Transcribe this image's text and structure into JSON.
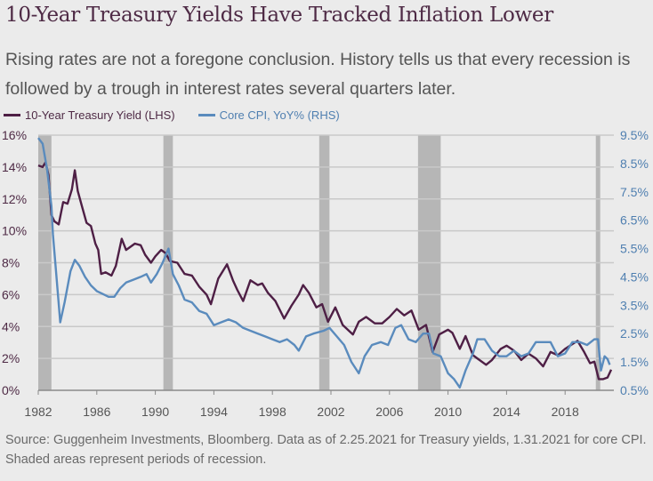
{
  "header": {
    "title": "10-Year Treasury Yields Have Tracked Inflation Lower",
    "subtitle": "Rising rates are not a foregone conclusion. History tells us that every recession is followed by a trough in interest rates several quarters later."
  },
  "footer": {
    "source": "Source: Guggenheim Investments, Bloomberg. Data as of 2.25.2021 for Treasury yields, 1.31.2021 for core CPI. Shaded areas represent periods of recession."
  },
  "colors": {
    "treasury": "#4e1f45",
    "cpi": "#5a8bbd",
    "recession": "#b6b6b6",
    "grid": "#c9c9c9",
    "background": "#ebebeb"
  },
  "chart_data": {
    "type": "line",
    "title": "10-Year Treasury Yields Have Tracked Inflation Lower",
    "xlabel": "",
    "ylabel_left": "10-Year Treasury Yield (%)",
    "ylabel_right": "Core CPI, YoY%",
    "xlim": [
      1982,
      2021.2
    ],
    "ylim_left": [
      0,
      16
    ],
    "ylim_right": [
      0.5,
      9.5
    ],
    "grid": true,
    "legend_position": "top-left",
    "x_ticks": [
      "1982",
      "1986",
      "1990",
      "1994",
      "1998",
      "2002",
      "2006",
      "2010",
      "2014",
      "2018"
    ],
    "x_tick_values": [
      1982,
      1986,
      1990,
      1994,
      1998,
      2002,
      2006,
      2010,
      2014,
      2018
    ],
    "y_ticks_left": [
      "16%",
      "14%",
      "12%",
      "10%",
      "8%",
      "6%",
      "4%",
      "2%",
      "0%"
    ],
    "y_tick_values_left": [
      16,
      14,
      12,
      10,
      8,
      6,
      4,
      2,
      0
    ],
    "y_ticks_right": [
      "9.5%",
      "8.5%",
      "7.5%",
      "6.5%",
      "5.5%",
      "4.5%",
      "3.5%",
      "2.5%",
      "1.5%",
      "0.5%"
    ],
    "y_tick_values_right": [
      9.5,
      8.5,
      7.5,
      6.5,
      5.5,
      4.5,
      3.5,
      2.5,
      1.5,
      0.5
    ],
    "recessions": [
      {
        "start": 1982.0,
        "end": 1982.9
      },
      {
        "start": 1990.55,
        "end": 1991.2
      },
      {
        "start": 2001.2,
        "end": 2001.9
      },
      {
        "start": 2007.95,
        "end": 2009.5
      },
      {
        "start": 2020.1,
        "end": 2020.4
      }
    ],
    "series": [
      {
        "name": "10-Year Treasury Yield (LHS)",
        "axis": "left",
        "x": [
          1982.0,
          1982.3,
          1982.5,
          1982.7,
          1982.9,
          1983.1,
          1983.4,
          1983.7,
          1984.0,
          1984.3,
          1984.5,
          1984.7,
          1985.0,
          1985.3,
          1985.6,
          1985.9,
          1986.1,
          1986.3,
          1986.6,
          1987.0,
          1987.3,
          1987.7,
          1988.0,
          1988.3,
          1988.6,
          1989.0,
          1989.3,
          1989.7,
          1990.0,
          1990.4,
          1990.7,
          1991.0,
          1991.5,
          1992.0,
          1992.5,
          1993.0,
          1993.5,
          1993.8,
          1994.3,
          1994.9,
          1995.3,
          1995.6,
          1996.0,
          1996.5,
          1997.0,
          1997.3,
          1997.7,
          1998.2,
          1998.8,
          1999.3,
          1999.8,
          2000.1,
          2000.5,
          2001.0,
          2001.4,
          2001.8,
          2002.3,
          2002.8,
          2003.5,
          2003.9,
          2004.4,
          2005.0,
          2005.5,
          2006.0,
          2006.5,
          2007.0,
          2007.5,
          2008.0,
          2008.5,
          2008.95,
          2009.4,
          2010.0,
          2010.3,
          2010.8,
          2011.2,
          2011.7,
          2012.0,
          2012.6,
          2013.0,
          2013.6,
          2014.0,
          2014.5,
          2015.0,
          2015.5,
          2016.0,
          2016.5,
          2017.0,
          2017.5,
          2018.0,
          2018.5,
          2018.85,
          2019.3,
          2019.7,
          2020.0,
          2020.3,
          2020.6,
          2020.9,
          2021.15
        ],
        "values": [
          14.1,
          14.0,
          14.3,
          13.5,
          11.0,
          10.6,
          10.4,
          11.8,
          11.7,
          12.6,
          13.8,
          12.5,
          11.5,
          10.5,
          10.3,
          9.2,
          8.8,
          7.3,
          7.4,
          7.2,
          7.8,
          9.5,
          8.8,
          9.0,
          9.2,
          9.1,
          8.5,
          8.0,
          8.4,
          8.8,
          8.6,
          8.1,
          8.0,
          7.3,
          7.2,
          6.5,
          6.0,
          5.4,
          7.0,
          7.9,
          6.9,
          6.3,
          5.6,
          6.9,
          6.6,
          6.7,
          6.1,
          5.6,
          4.5,
          5.3,
          6.0,
          6.6,
          6.1,
          5.2,
          5.4,
          4.3,
          5.2,
          4.1,
          3.5,
          4.3,
          4.6,
          4.2,
          4.2,
          4.6,
          5.1,
          4.7,
          5.0,
          3.8,
          4.1,
          2.4,
          3.5,
          3.8,
          3.6,
          2.6,
          3.4,
          2.2,
          2.0,
          1.6,
          1.9,
          2.6,
          2.8,
          2.5,
          1.9,
          2.3,
          2.0,
          1.5,
          2.4,
          2.2,
          2.6,
          2.9,
          3.1,
          2.4,
          1.7,
          1.8,
          0.7,
          0.7,
          0.8,
          1.3
        ]
      },
      {
        "name": "Core CPI, YoY% (RHS)",
        "axis": "right",
        "x": [
          1982.0,
          1982.3,
          1982.6,
          1982.9,
          1983.0,
          1983.2,
          1983.5,
          1983.8,
          1984.2,
          1984.5,
          1984.8,
          1985.2,
          1985.6,
          1986.0,
          1986.4,
          1986.8,
          1987.2,
          1987.6,
          1988.0,
          1988.5,
          1989.0,
          1989.4,
          1989.7,
          1990.1,
          1990.5,
          1990.9,
          1991.2,
          1991.6,
          1992.0,
          1992.5,
          1993.0,
          1993.5,
          1994.0,
          1994.5,
          1995.0,
          1995.5,
          1996.0,
          1996.5,
          1997.0,
          1997.5,
          1998.0,
          1998.5,
          1999.0,
          1999.5,
          1999.8,
          2000.3,
          2000.8,
          2001.5,
          2001.9,
          2002.4,
          2002.9,
          2003.4,
          2003.9,
          2004.3,
          2004.8,
          2005.4,
          2005.9,
          2006.4,
          2006.8,
          2007.3,
          2007.8,
          2008.3,
          2008.7,
          2009.0,
          2009.5,
          2010.0,
          2010.4,
          2010.8,
          2011.2,
          2011.7,
          2012.0,
          2012.5,
          2013.0,
          2013.5,
          2014.0,
          2014.5,
          2015.0,
          2015.5,
          2016.0,
          2016.5,
          2017.0,
          2017.5,
          2018.0,
          2018.5,
          2019.0,
          2019.5,
          2020.0,
          2020.25,
          2020.45,
          2020.7,
          2020.9,
          2021.05
        ],
        "values": [
          9.4,
          9.2,
          8.3,
          7.0,
          6.0,
          4.8,
          2.9,
          3.6,
          4.7,
          5.1,
          4.9,
          4.5,
          4.2,
          4.0,
          3.9,
          3.8,
          3.8,
          4.1,
          4.3,
          4.4,
          4.5,
          4.6,
          4.3,
          4.6,
          5.0,
          5.5,
          4.6,
          4.2,
          3.7,
          3.6,
          3.3,
          3.2,
          2.8,
          2.9,
          3.0,
          2.9,
          2.7,
          2.6,
          2.5,
          2.4,
          2.3,
          2.2,
          2.3,
          2.1,
          1.9,
          2.4,
          2.5,
          2.6,
          2.7,
          2.4,
          2.1,
          1.5,
          1.1,
          1.7,
          2.1,
          2.2,
          2.1,
          2.7,
          2.8,
          2.3,
          2.2,
          2.5,
          2.5,
          1.8,
          1.7,
          1.1,
          0.9,
          0.6,
          1.2,
          1.8,
          2.3,
          2.3,
          1.9,
          1.7,
          1.7,
          1.9,
          1.7,
          1.8,
          2.2,
          2.2,
          2.2,
          1.7,
          1.8,
          2.2,
          2.2,
          2.1,
          2.3,
          2.3,
          1.2,
          1.7,
          1.6,
          1.4
        ]
      }
    ]
  }
}
